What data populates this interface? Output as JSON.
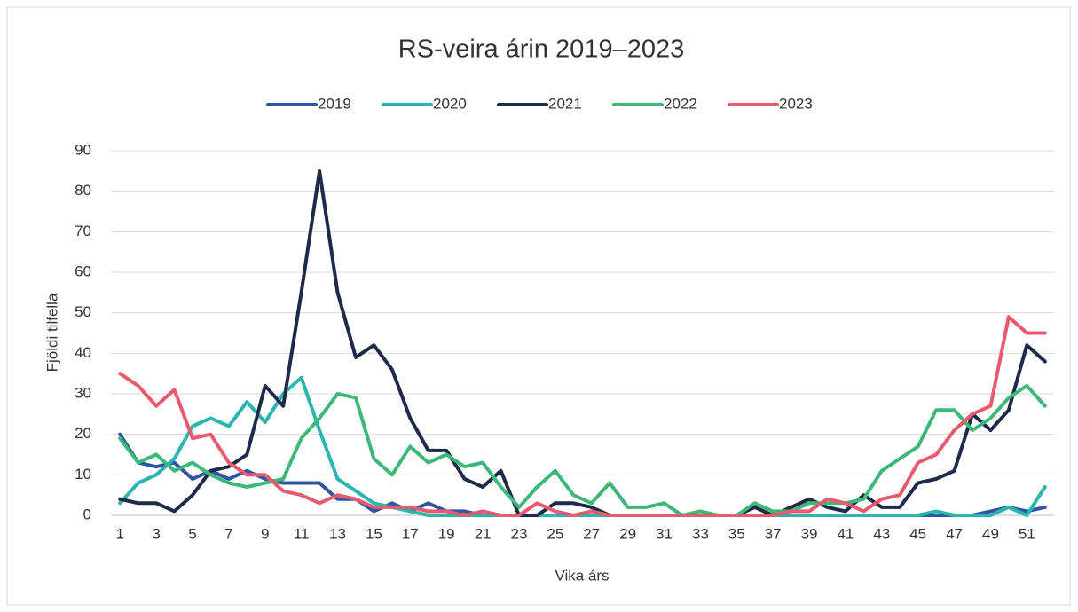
{
  "chart_data": {
    "type": "line",
    "title": "RS-veira árin 2019–2023",
    "xlabel": "Vika árs",
    "ylabel": "Fjöldi tilfella",
    "categories": [
      1,
      null,
      3,
      null,
      5,
      null,
      7,
      null,
      9,
      null,
      11,
      null,
      13,
      null,
      15,
      null,
      17,
      null,
      19,
      null,
      21,
      null,
      23,
      null,
      25,
      null,
      27,
      null,
      29,
      null,
      31,
      null,
      33,
      null,
      35,
      null,
      37,
      null,
      39,
      null,
      41,
      null,
      43,
      null,
      45,
      null,
      47,
      null,
      49,
      null,
      51,
      null
    ],
    "ylim": [
      0,
      90
    ],
    "yticks": [
      0,
      10,
      20,
      30,
      40,
      50,
      60,
      70,
      80,
      90
    ],
    "grid": true,
    "legend": "top",
    "series": [
      {
        "name": "2019",
        "color": "#2f55a4",
        "values": [
          20,
          13,
          12,
          13,
          9,
          11,
          9,
          11,
          9,
          8,
          8,
          8,
          4,
          4,
          1,
          3,
          1,
          3,
          1,
          1,
          0,
          0,
          0,
          0,
          0,
          0,
          0,
          0,
          0,
          0,
          0,
          0,
          0,
          0,
          0,
          0,
          0,
          0,
          0,
          0,
          0,
          0,
          0,
          0,
          0,
          0,
          0,
          0,
          1,
          2,
          1,
          2
        ]
      },
      {
        "name": "2020",
        "color": "#2bb5b0",
        "values": [
          3,
          8,
          10,
          14,
          22,
          24,
          22,
          28,
          23,
          30,
          34,
          21,
          9,
          6,
          3,
          2,
          1,
          0,
          0,
          0,
          0,
          0,
          0,
          0,
          0,
          0,
          0,
          0,
          0,
          0,
          0,
          0,
          0,
          0,
          0,
          0,
          0,
          0,
          0,
          0,
          0,
          0,
          0,
          0,
          0,
          1,
          0,
          0,
          0,
          2,
          0,
          7
        ]
      },
      {
        "name": "2021",
        "color": "#1f2a4a",
        "values": [
          4,
          3,
          3,
          1,
          5,
          11,
          12,
          15,
          32,
          27,
          55,
          85,
          55,
          39,
          42,
          36,
          24,
          16,
          16,
          9,
          7,
          11,
          0,
          0,
          3,
          3,
          2,
          0,
          0,
          0,
          0,
          0,
          0,
          0,
          0,
          2,
          0,
          2,
          4,
          2,
          1,
          5,
          2,
          2,
          8,
          9,
          11,
          25,
          21,
          26,
          42,
          38
        ]
      },
      {
        "name": "2022",
        "color": "#3cb878",
        "values": [
          19,
          13,
          15,
          11,
          13,
          10,
          8,
          7,
          8,
          9,
          19,
          24,
          30,
          29,
          14,
          10,
          17,
          13,
          15,
          12,
          13,
          7,
          2,
          7,
          11,
          5,
          3,
          8,
          2,
          2,
          3,
          0,
          1,
          0,
          0,
          3,
          1,
          1,
          3,
          3,
          3,
          4,
          11,
          14,
          17,
          26,
          26,
          21,
          24,
          29,
          32,
          27
        ]
      },
      {
        "name": "2023",
        "color": "#e85a6e",
        "values": [
          35,
          32,
          27,
          31,
          19,
          20,
          13,
          10,
          10,
          6,
          5,
          3,
          5,
          4,
          2,
          2,
          2,
          1,
          1,
          0,
          1,
          0,
          0,
          3,
          1,
          0,
          1,
          0,
          0,
          0,
          0,
          0,
          0,
          0,
          0,
          0,
          0,
          1,
          1,
          4,
          3,
          1,
          4,
          5,
          13,
          15,
          21,
          25,
          27,
          49,
          45,
          45
        ]
      }
    ]
  }
}
